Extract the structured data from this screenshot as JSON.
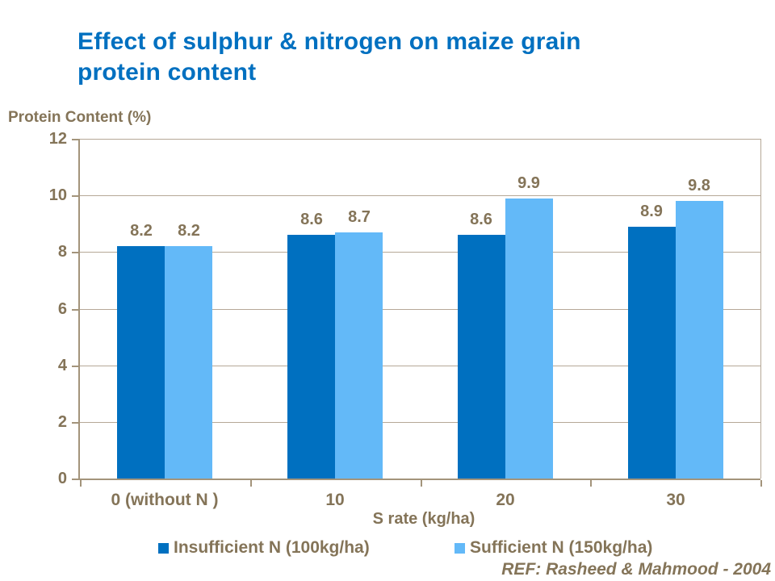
{
  "chart_data": {
    "type": "bar",
    "title": "Effect of sulphur & nitrogen on maize grain protein content",
    "ylabel": "Protein Content (%)",
    "xlabel": "S rate (kg/ha)",
    "categories": [
      "0 (without N )",
      "10",
      "20",
      "30"
    ],
    "series": [
      {
        "name": "Insufficient N (100kg/ha)",
        "color": "#0070C0",
        "values": [
          8.2,
          8.6,
          8.6,
          8.9
        ]
      },
      {
        "name": "Sufficient N (150kg/ha)",
        "color": "#63B9F8",
        "values": [
          8.2,
          8.7,
          9.9,
          9.8
        ]
      }
    ],
    "ylim": [
      0,
      12
    ],
    "yticks": [
      0,
      2,
      4,
      6,
      8,
      10,
      12
    ],
    "grid": true,
    "legend_position": "bottom",
    "reference": "REF: Rasheed & Mahmood - 2004"
  },
  "colors": {
    "title_blue": "#0070C0",
    "text_brown": "#847458",
    "gridline": "#B6A897",
    "axis_line": "#A3947B"
  }
}
